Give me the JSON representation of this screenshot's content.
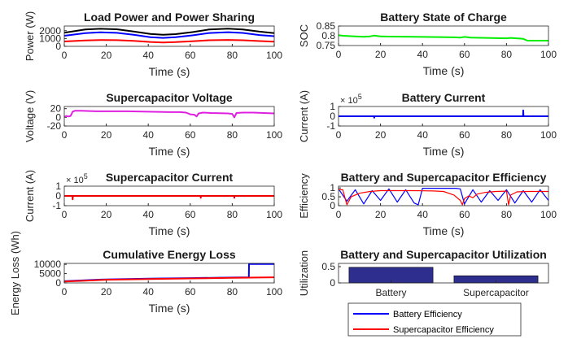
{
  "chart_data": [
    {
      "id": "load",
      "type": "line",
      "title": "Load Power and Power Sharing",
      "xlabel": "Time (s)",
      "ylabel": "Power (W)",
      "xlim": [
        0,
        100
      ],
      "ylim": [
        0,
        2600
      ],
      "xticks": [
        "0",
        "20",
        "40",
        "60",
        "80",
        "100"
      ],
      "yticks": [
        {
          "v": 0,
          "t": "0"
        },
        {
          "v": 1000,
          "t": "1000"
        },
        {
          "v": 2000,
          "t": "2000"
        }
      ],
      "series": [
        {
          "color": "#000000",
          "x": [
            0,
            10,
            17,
            25,
            33,
            41,
            47,
            53,
            61,
            69,
            78,
            85,
            93,
            100
          ],
          "y": [
            1750,
            2150,
            2250,
            2180,
            1900,
            1580,
            1480,
            1560,
            1820,
            2150,
            2260,
            2150,
            1880,
            1700
          ]
        },
        {
          "color": "#0000ff",
          "x": [
            0,
            10,
            17,
            25,
            33,
            41,
            47,
            53,
            61,
            69,
            78,
            85,
            93,
            100
          ],
          "y": [
            1350,
            1700,
            1800,
            1730,
            1480,
            1180,
            1080,
            1160,
            1400,
            1710,
            1810,
            1720,
            1450,
            1300
          ]
        },
        {
          "color": "#ff0000",
          "x": [
            0,
            10,
            17,
            25,
            33,
            41,
            47,
            53,
            61,
            69,
            78,
            85,
            93,
            100
          ],
          "y": [
            620,
            760,
            810,
            790,
            700,
            560,
            500,
            540,
            650,
            780,
            820,
            780,
            680,
            600
          ]
        }
      ]
    },
    {
      "id": "soc",
      "type": "line",
      "title": "Battery State of Charge",
      "xlabel": "Time (s)",
      "ylabel": "SOC",
      "xlim": [
        0,
        100
      ],
      "ylim": [
        0.75,
        0.85
      ],
      "xticks": [
        "0",
        "20",
        "40",
        "60",
        "80",
        "100"
      ],
      "yticks": [
        {
          "v": 0.75,
          "t": "0.75"
        },
        {
          "v": 0.8,
          "t": "0.8"
        },
        {
          "v": 0.85,
          "t": "0.85"
        }
      ],
      "series": [
        {
          "color": "#00ee00",
          "x": [
            0,
            2,
            4,
            12,
            15,
            17,
            20,
            25,
            40,
            55,
            58,
            60,
            63,
            80,
            82,
            88,
            90,
            100
          ],
          "y": [
            0.803,
            0.8,
            0.799,
            0.795,
            0.797,
            0.801,
            0.797,
            0.796,
            0.794,
            0.792,
            0.791,
            0.794,
            0.791,
            0.787,
            0.789,
            0.784,
            0.775,
            0.775
          ]
        }
      ]
    },
    {
      "id": "scv",
      "type": "line",
      "title": "Supercapacitor Voltage",
      "xlabel": "Time (s)",
      "ylabel": "Voltage (V)",
      "xlim": [
        0,
        100
      ],
      "ylim": [
        -20,
        25
      ],
      "xticks": [
        "0",
        "20",
        "40",
        "60",
        "80",
        "100"
      ],
      "yticks": [
        {
          "v": -20,
          "t": "-20"
        },
        {
          "v": 0,
          "t": "0"
        },
        {
          "v": 20,
          "t": "20"
        }
      ],
      "series": [
        {
          "color": "#e020e0",
          "x": [
            0,
            1,
            2,
            3,
            4,
            5,
            8,
            15,
            20,
            30,
            40,
            50,
            55,
            58,
            60,
            62,
            63,
            64,
            66,
            70,
            78,
            80,
            81,
            82,
            85,
            90,
            95,
            100
          ],
          "y": [
            1,
            3,
            2,
            3,
            13,
            15,
            15,
            14,
            14,
            14,
            13,
            12,
            12,
            11,
            7,
            6,
            2,
            9,
            11,
            10,
            9,
            8,
            0,
            10,
            11,
            11,
            10,
            9
          ]
        }
      ]
    },
    {
      "id": "batcur",
      "type": "line",
      "title": "Battery Current",
      "xlabel": "Time (s)",
      "ylabel": "Current (A)",
      "exponent": "× 10^5",
      "xlim": [
        0,
        100
      ],
      "ylim": [
        -1,
        1
      ],
      "xticks": [
        "0",
        "20",
        "40",
        "60",
        "80",
        "100"
      ],
      "yticks": [
        {
          "v": -1,
          "t": "-1"
        },
        {
          "v": 0,
          "t": "0"
        },
        {
          "v": 1,
          "t": "1"
        }
      ],
      "series": [
        {
          "color": "#0000ee",
          "x": [
            0,
            16.9,
            17,
            17.1,
            87.9,
            88,
            88.1,
            100
          ],
          "y": [
            0,
            0,
            -0.15,
            0,
            0,
            0.6,
            0,
            0
          ]
        }
      ]
    },
    {
      "id": "sccur",
      "type": "line",
      "title": "Supercapacitor Current",
      "xlabel": "Time (s)",
      "ylabel": "Current (A)",
      "exponent": "× 10^5",
      "xlim": [
        0,
        100
      ],
      "ylim": [
        -1,
        1
      ],
      "xticks": [
        "0",
        "20",
        "40",
        "60",
        "80",
        "100"
      ],
      "yticks": [
        {
          "v": -1,
          "t": "-1"
        },
        {
          "v": 0,
          "t": "0"
        },
        {
          "v": 1,
          "t": "1"
        }
      ],
      "series": [
        {
          "color": "#ee0000",
          "x": [
            0,
            3.9,
            4,
            4.1,
            64.9,
            65,
            65.1,
            80.9,
            81,
            81.1,
            100
          ],
          "y": [
            0,
            0,
            -0.35,
            0,
            0,
            -0.2,
            0,
            0,
            -0.2,
            0,
            0
          ]
        }
      ]
    },
    {
      "id": "eff",
      "type": "line",
      "title": "Battery and Supercapacitor Efficiency",
      "xlabel": "Time (s)",
      "ylabel": "Efficiency",
      "xlim": [
        0,
        100
      ],
      "ylim": [
        0,
        1.1
      ],
      "xticks": [
        "0",
        "20",
        "40",
        "60",
        "80",
        "100"
      ],
      "yticks": [
        {
          "v": 0,
          "t": "0"
        },
        {
          "v": 0.5,
          "t": "0.5"
        },
        {
          "v": 1,
          "t": "1"
        }
      ],
      "series": [
        {
          "name": "Battery Efficiency",
          "color": "#0000ff",
          "x": [
            0,
            4,
            8,
            12,
            16,
            20,
            24,
            28,
            32,
            36,
            38,
            40,
            44,
            48,
            52,
            56,
            58,
            60,
            64,
            68,
            72,
            76,
            80,
            84,
            88,
            92,
            96,
            100
          ],
          "y": [
            0.95,
            0.25,
            0.9,
            0.1,
            0.85,
            0.3,
            0.95,
            0.2,
            0.9,
            0.15,
            0.05,
            0.98,
            0.98,
            0.98,
            0.98,
            0.98,
            0.95,
            0.1,
            0.9,
            0.2,
            0.85,
            0.3,
            0.9,
            0.15,
            0.85,
            0.2,
            0.9,
            0.3
          ]
        },
        {
          "name": "Supercapacitor Efficiency",
          "color": "#ff0000",
          "x": [
            0,
            2,
            4,
            6,
            10,
            15,
            20,
            25,
            30,
            35,
            40,
            45,
            50,
            55,
            58,
            59,
            60,
            62,
            64,
            66,
            70,
            75,
            80,
            81,
            82,
            85,
            90,
            95,
            100
          ],
          "y": [
            0.9,
            0.9,
            0.05,
            0.5,
            0.7,
            0.8,
            0.85,
            0.85,
            0.85,
            0.85,
            0.84,
            0.83,
            0.8,
            0.6,
            0.3,
            0.05,
            0.4,
            0.55,
            0.45,
            0.65,
            0.75,
            0.8,
            0.82,
            0.05,
            0.6,
            0.78,
            0.8,
            0.8,
            0.8
          ]
        }
      ]
    },
    {
      "id": "energy",
      "type": "line",
      "title": "Cumulative Energy Loss",
      "xlabel": "Time (s)",
      "ylabel": "Energy Loss (Wh)",
      "xlim": [
        0,
        100
      ],
      "ylim": [
        0,
        10500
      ],
      "xticks": [
        "0",
        "20",
        "40",
        "60",
        "80",
        "100"
      ],
      "yticks": [
        {
          "v": 0,
          "t": "0"
        },
        {
          "v": 5000,
          "t": "5000"
        },
        {
          "v": 10000,
          "t": "10000"
        }
      ],
      "series": [
        {
          "color": "#0000ff",
          "x": [
            0,
            10,
            20,
            40,
            60,
            80,
            87.9,
            88,
            100
          ],
          "y": [
            900,
            1400,
            1900,
            2300,
            2600,
            2900,
            3000,
            10200,
            10200
          ]
        },
        {
          "color": "#ff0000",
          "x": [
            0,
            10,
            20,
            40,
            60,
            80,
            100
          ],
          "y": [
            800,
            1200,
            1700,
            2100,
            2400,
            2700,
            3000
          ]
        }
      ]
    },
    {
      "id": "util",
      "type": "bar",
      "title": "Battery and Supercapacitor Utilization",
      "ylabel": "Utilization",
      "ylim": [
        0,
        0.6
      ],
      "yticks": [
        {
          "v": 0,
          "t": "0"
        },
        {
          "v": 0.5,
          "t": "0.5"
        }
      ],
      "categories": [
        "Battery",
        "Supercapacitor"
      ],
      "values": [
        0.48,
        0.22
      ],
      "bar_color": "#2e2e8f"
    }
  ],
  "legend": [
    {
      "label": "Battery Efficiency",
      "color": "#0000ff"
    },
    {
      "label": "Supercapacitor Efficiency",
      "color": "#ff0000"
    }
  ]
}
